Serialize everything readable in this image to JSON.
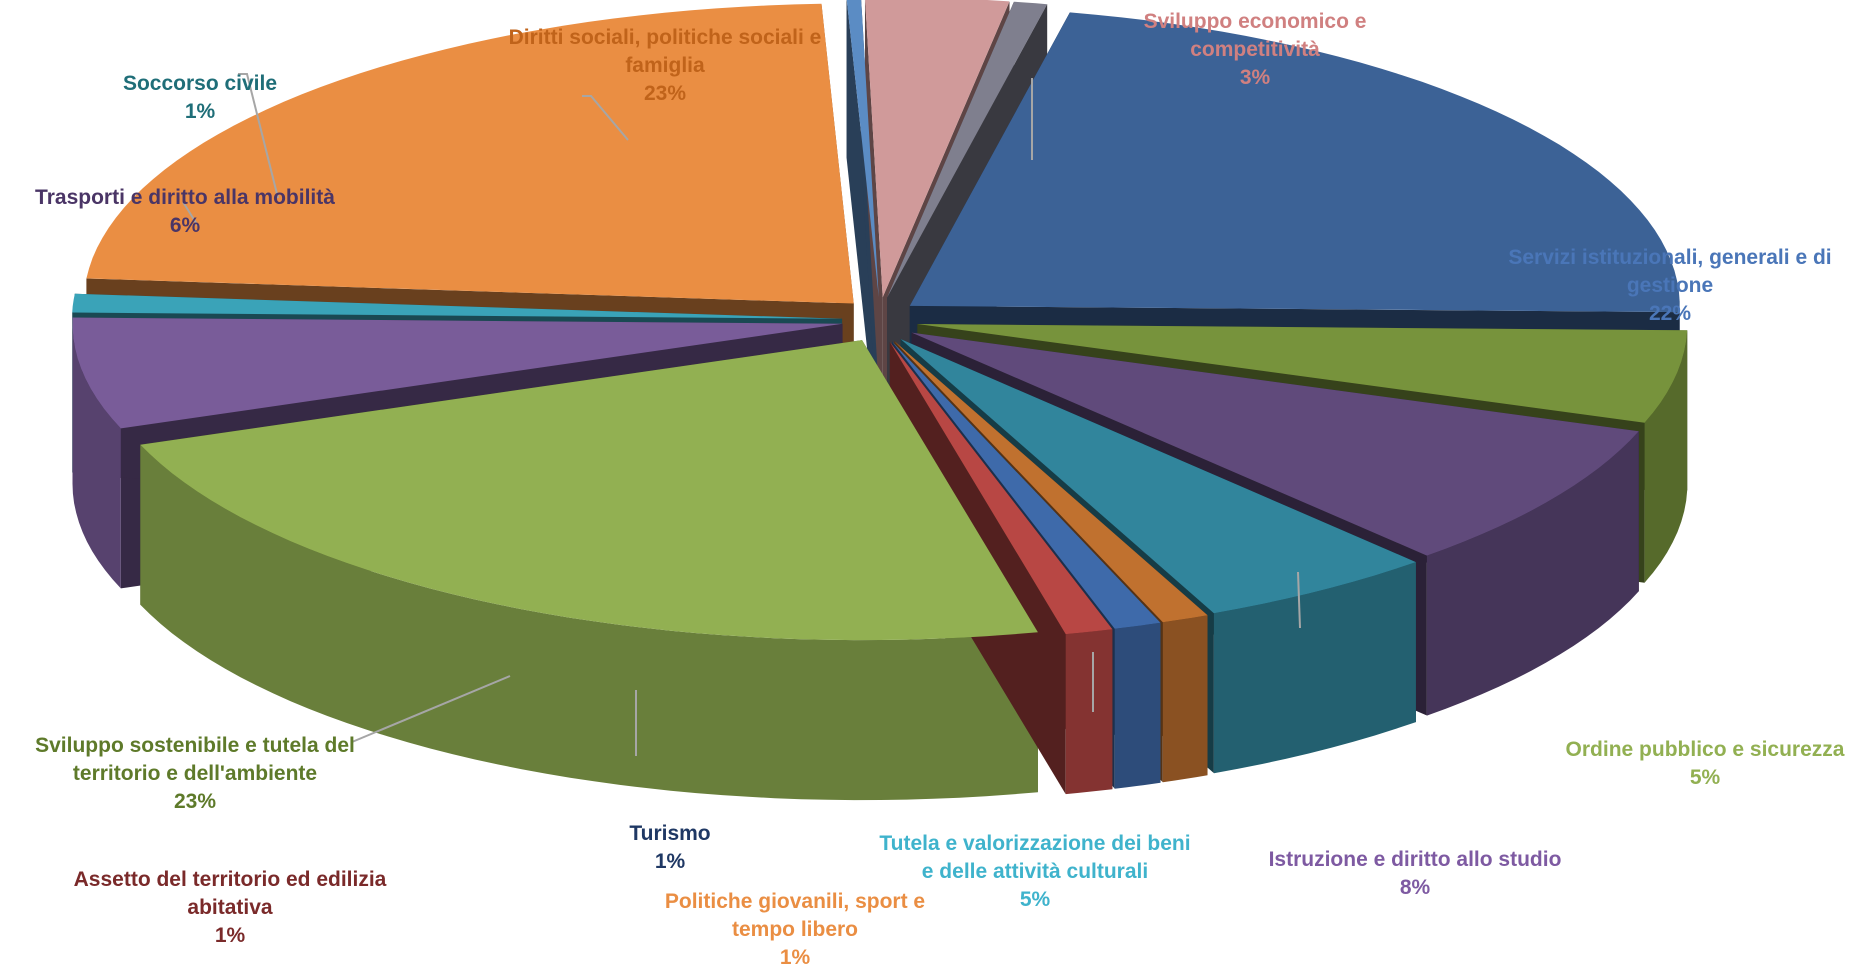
{
  "chart_data": {
    "type": "pie",
    "style": "3d-exploded",
    "title": "",
    "slices": [
      {
        "key": "servizi",
        "lines": [
          "Servizi istituzionali, generali e di",
          "gestione"
        ],
        "percent_label": "22%",
        "value": 22,
        "color": "#3C6296"
      },
      {
        "key": "ordine",
        "lines": [
          "Ordine pubblico e sicurezza"
        ],
        "percent_label": "5%",
        "value": 5,
        "color": "#77933C"
      },
      {
        "key": "istruzione",
        "lines": [
          "Istruzione e diritto allo studio"
        ],
        "percent_label": "8%",
        "value": 8,
        "color": "#604A7B"
      },
      {
        "key": "cultura",
        "lines": [
          "Tutela e valorizzazione dei beni",
          "e delle attività culturali"
        ],
        "percent_label": "5%",
        "value": 5,
        "color": "#31859C"
      },
      {
        "key": "giovani",
        "lines": [
          "Politiche giovanili, sport e",
          "tempo libero"
        ],
        "percent_label": "1%",
        "value": 1,
        "color": "#C0712F"
      },
      {
        "key": "turismo",
        "lines": [
          "Turismo"
        ],
        "percent_label": "1%",
        "value": 1,
        "color": "#3E6AAA"
      },
      {
        "key": "assetto",
        "lines": [
          "Assetto del territorio ed edilizia",
          "abitativa"
        ],
        "percent_label": "1%",
        "value": 1,
        "color": "#B84744"
      },
      {
        "key": "sostenibile",
        "lines": [
          "Sviluppo sostenibile e tutela del",
          "territorio e dell'ambiente"
        ],
        "percent_label": "23%",
        "value": 23,
        "color": "#92B052"
      },
      {
        "key": "trasporti",
        "lines": [
          "Trasporti e diritto alla mobilità"
        ],
        "percent_label": "6%",
        "value": 6,
        "color": "#795C99"
      },
      {
        "key": "soccorso",
        "lines": [
          "Soccorso civile"
        ],
        "percent_label": "1%",
        "value": 1,
        "color": "#3AA3B8"
      },
      {
        "key": "diritti",
        "lines": [
          "Diritti sociali, politiche sociali e",
          "famiglia"
        ],
        "percent_label": "23%",
        "value": 23,
        "color": "#EA8E43"
      },
      {
        "key": "tiny",
        "lines": [],
        "percent_label": "",
        "value": 0.3,
        "color": "#5B8CC4"
      },
      {
        "key": "sviluppo",
        "lines": [
          "Sviluppo economico e",
          "competitività"
        ],
        "percent_label": "3%",
        "value": 3,
        "color": "#D09A9A"
      },
      {
        "key": "grigio",
        "lines": [],
        "percent_label": "",
        "value": 0.7,
        "color": "#7F7F8E"
      }
    ],
    "label_colors": {
      "servizi": "#4A76B8",
      "ordine": "#92B052",
      "istruzione": "#7E5AA2",
      "cultura": "#3FB3CC",
      "giovani": "#EA8E43",
      "turismo": "#1F3864",
      "assetto": "#7A2A2A",
      "sostenibile": "#5E7A2A",
      "trasporti": "#4A3566",
      "soccorso": "#1F6E78",
      "diritti": "#C0631A",
      "sviluppo": "#D08080"
    }
  }
}
